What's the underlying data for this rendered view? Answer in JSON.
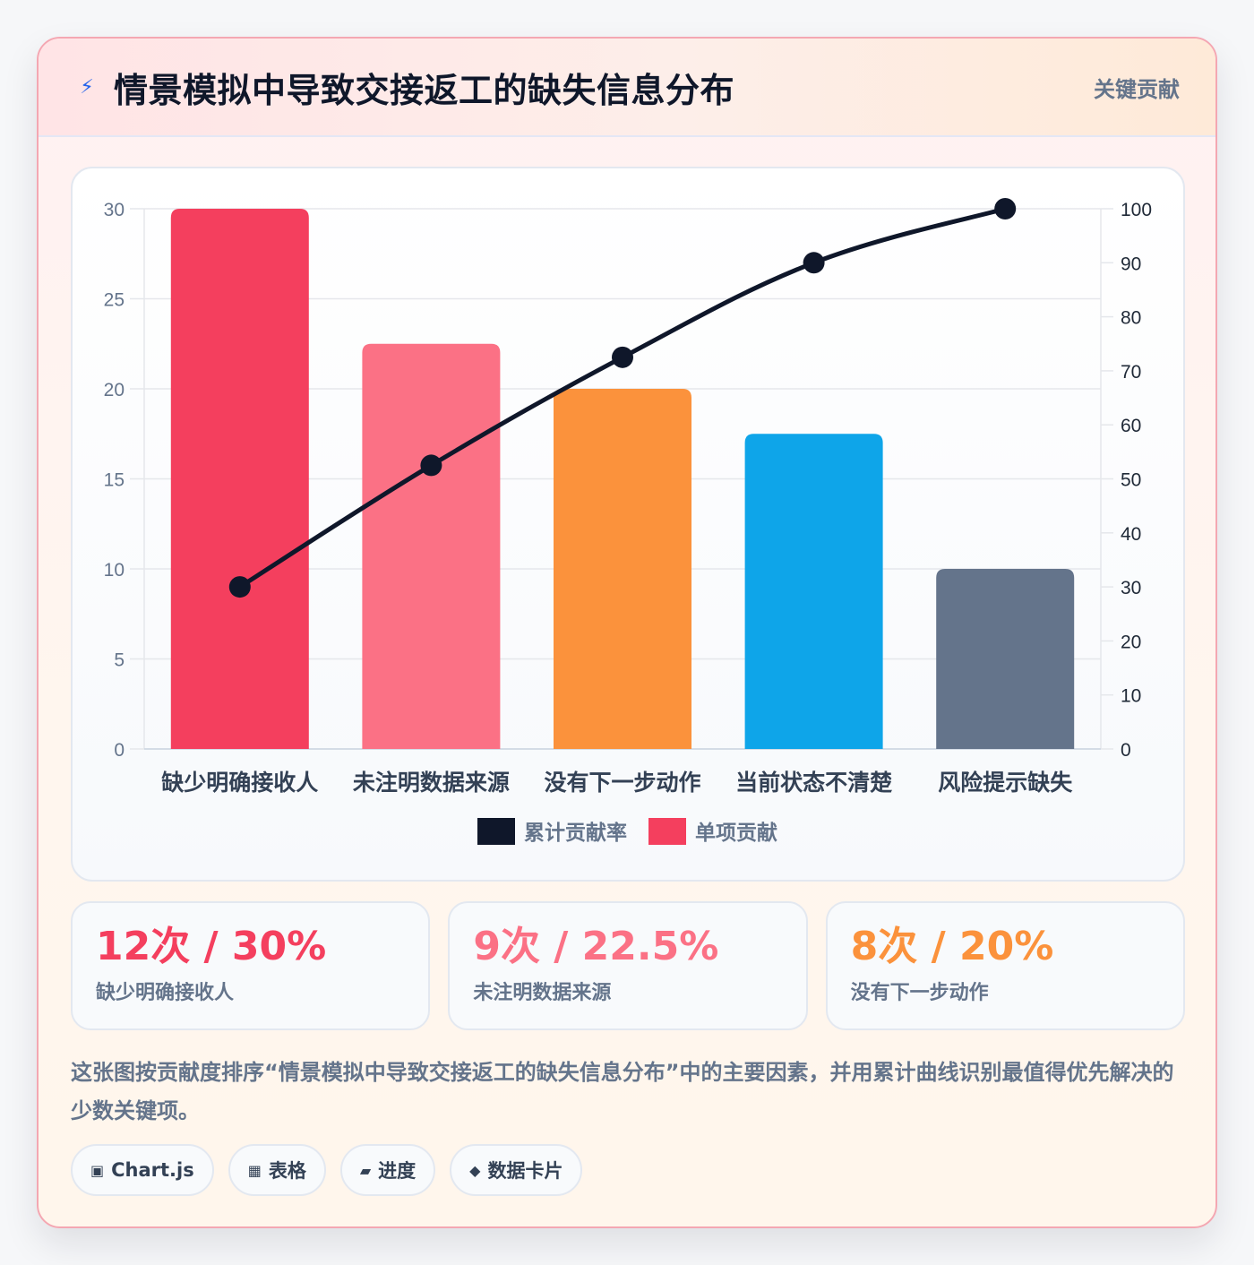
{
  "header": {
    "icon": "lightning-icon",
    "title": "情景模拟中导致交接返工的缺失信息分布",
    "tag": "关键贡献"
  },
  "chart_data": {
    "type": "bar",
    "categories": [
      "缺少明确接收人",
      "未注明数据来源",
      "没有下一步动作",
      "当前状态不清楚",
      "风险提示缺失"
    ],
    "series": [
      {
        "name": "单项贡献",
        "type": "bar",
        "axis": "left",
        "values": [
          30,
          22.5,
          20,
          17.5,
          10
        ],
        "colors": [
          "#f43f5e",
          "#fb7185",
          "#fb923c",
          "#0ea5e9",
          "#64748b"
        ]
      },
      {
        "name": "累计贡献率",
        "type": "line",
        "axis": "right",
        "values": [
          30,
          52.5,
          72.5,
          90,
          100
        ],
        "color": "#0f172a"
      }
    ],
    "ylim": [
      0,
      30
    ],
    "y_ticks": [
      0,
      5,
      10,
      15,
      20,
      25,
      30
    ],
    "y2lim": [
      0,
      100
    ],
    "y2_ticks": [
      0,
      10,
      20,
      30,
      40,
      50,
      60,
      70,
      80,
      90,
      100
    ],
    "legend": [
      {
        "label": "累计贡献率",
        "color": "#0f172a"
      },
      {
        "label": "单项贡献",
        "color": "#f43f5e"
      }
    ],
    "legend_position": "bottom",
    "grid": true
  },
  "stats": [
    {
      "value": "12次 / 30%",
      "label": "缺少明确接收人",
      "color": "#f43f5e"
    },
    {
      "value": "9次 / 22.5%",
      "label": "未注明数据来源",
      "color": "#fb7185"
    },
    {
      "value": "8次 / 20%",
      "label": "没有下一步动作",
      "color": "#fb923c"
    }
  ],
  "description": "这张图按贡献度排序“情景模拟中导致交接返工的缺失信息分布”中的主要因素，并用累计曲线识别最值得优先解决的少数关键项。",
  "tags": [
    {
      "icon": "chip-icon",
      "glyph": "▣",
      "label": "Chart.js"
    },
    {
      "icon": "table-icon",
      "glyph": "▦",
      "label": "表格"
    },
    {
      "icon": "progress-icon",
      "glyph": "▰",
      "label": "进度"
    },
    {
      "icon": "diamond-icon",
      "glyph": "◆",
      "label": "数据卡片"
    }
  ]
}
